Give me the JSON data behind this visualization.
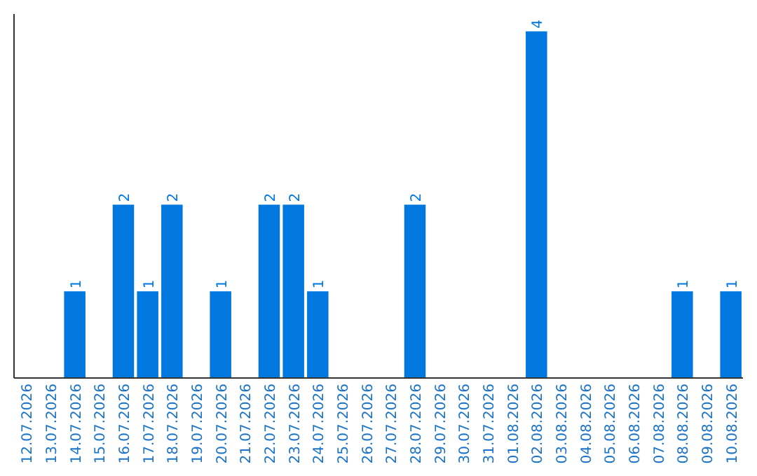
{
  "chart_data": {
    "type": "bar",
    "categories": [
      "12.07.2026",
      "13.07.2026",
      "14.07.2026",
      "15.07.2026",
      "16.07.2026",
      "17.07.2026",
      "18.07.2026",
      "19.07.2026",
      "20.07.2026",
      "21.07.2026",
      "22.07.2026",
      "23.07.2026",
      "24.07.2026",
      "25.07.2026",
      "26.07.2026",
      "27.07.2026",
      "28.07.2026",
      "29.07.2026",
      "30.07.2026",
      "31.07.2026",
      "01.08.2026",
      "02.08.2026",
      "03.08.2026",
      "04.08.2026",
      "05.08.2026",
      "06.08.2026",
      "07.08.2026",
      "08.08.2026",
      "09.08.2026",
      "10.08.2026"
    ],
    "values": [
      0,
      0,
      1,
      0,
      2,
      1,
      2,
      0,
      1,
      0,
      2,
      2,
      1,
      0,
      0,
      0,
      2,
      0,
      0,
      0,
      0,
      4,
      0,
      0,
      0,
      0,
      0,
      1,
      0,
      1
    ],
    "value_labels": [
      null,
      null,
      "1",
      null,
      "2",
      "1",
      "2",
      null,
      "1",
      null,
      "2",
      "2",
      "1",
      null,
      null,
      null,
      "2",
      null,
      null,
      null,
      null,
      "4",
      null,
      null,
      null,
      null,
      null,
      "1",
      null,
      "1"
    ],
    "color": "#0078e0",
    "ylim": [
      0,
      4.2
    ],
    "tick_labels": "x"
  }
}
